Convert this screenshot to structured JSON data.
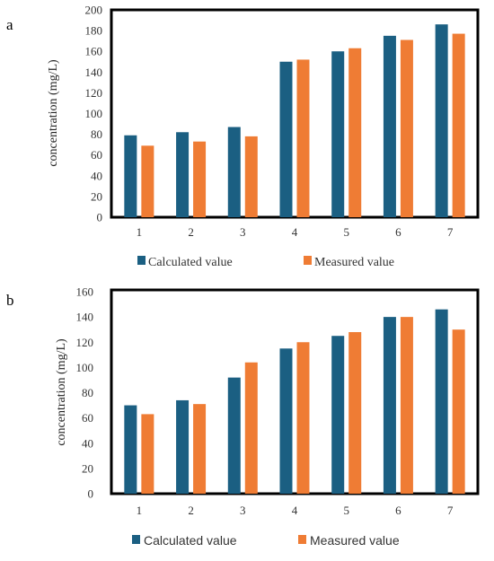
{
  "chart_data": [
    {
      "panel_label": "a",
      "type": "bar",
      "categories": [
        "1",
        "2",
        "3",
        "4",
        "5",
        "6",
        "7"
      ],
      "series": [
        {
          "name": "Calculated value",
          "values": [
            79,
            82,
            87,
            150,
            160,
            175,
            186
          ],
          "color": "#1b5f82"
        },
        {
          "name": "Measured value",
          "values": [
            69,
            73,
            78,
            152,
            163,
            171,
            177
          ],
          "color": "#ef7c34"
        }
      ],
      "title": "",
      "xlabel": "",
      "ylabel": "concentration (mg/L)",
      "ylim": [
        0,
        200
      ],
      "yticks": [
        0,
        20,
        40,
        60,
        80,
        100,
        120,
        140,
        160,
        180,
        200
      ],
      "grid": false,
      "legend": "bottom"
    },
    {
      "panel_label": "b",
      "type": "bar",
      "categories": [
        "1",
        "2",
        "3",
        "4",
        "5",
        "6",
        "7"
      ],
      "series": [
        {
          "name": "Calculated value",
          "values": [
            70,
            74,
            92,
            115,
            125,
            140,
            146
          ],
          "color": "#1b5f82"
        },
        {
          "name": "Measured value",
          "values": [
            63,
            71,
            104,
            120,
            128,
            140,
            130
          ],
          "color": "#ef7c34"
        }
      ],
      "title": "",
      "xlabel": "",
      "ylabel": "concentration (mg/L)",
      "ylim": [
        0,
        160
      ],
      "yticks": [
        0,
        20,
        40,
        60,
        80,
        100,
        120,
        140,
        160
      ],
      "grid": false,
      "legend": "bottom"
    }
  ]
}
